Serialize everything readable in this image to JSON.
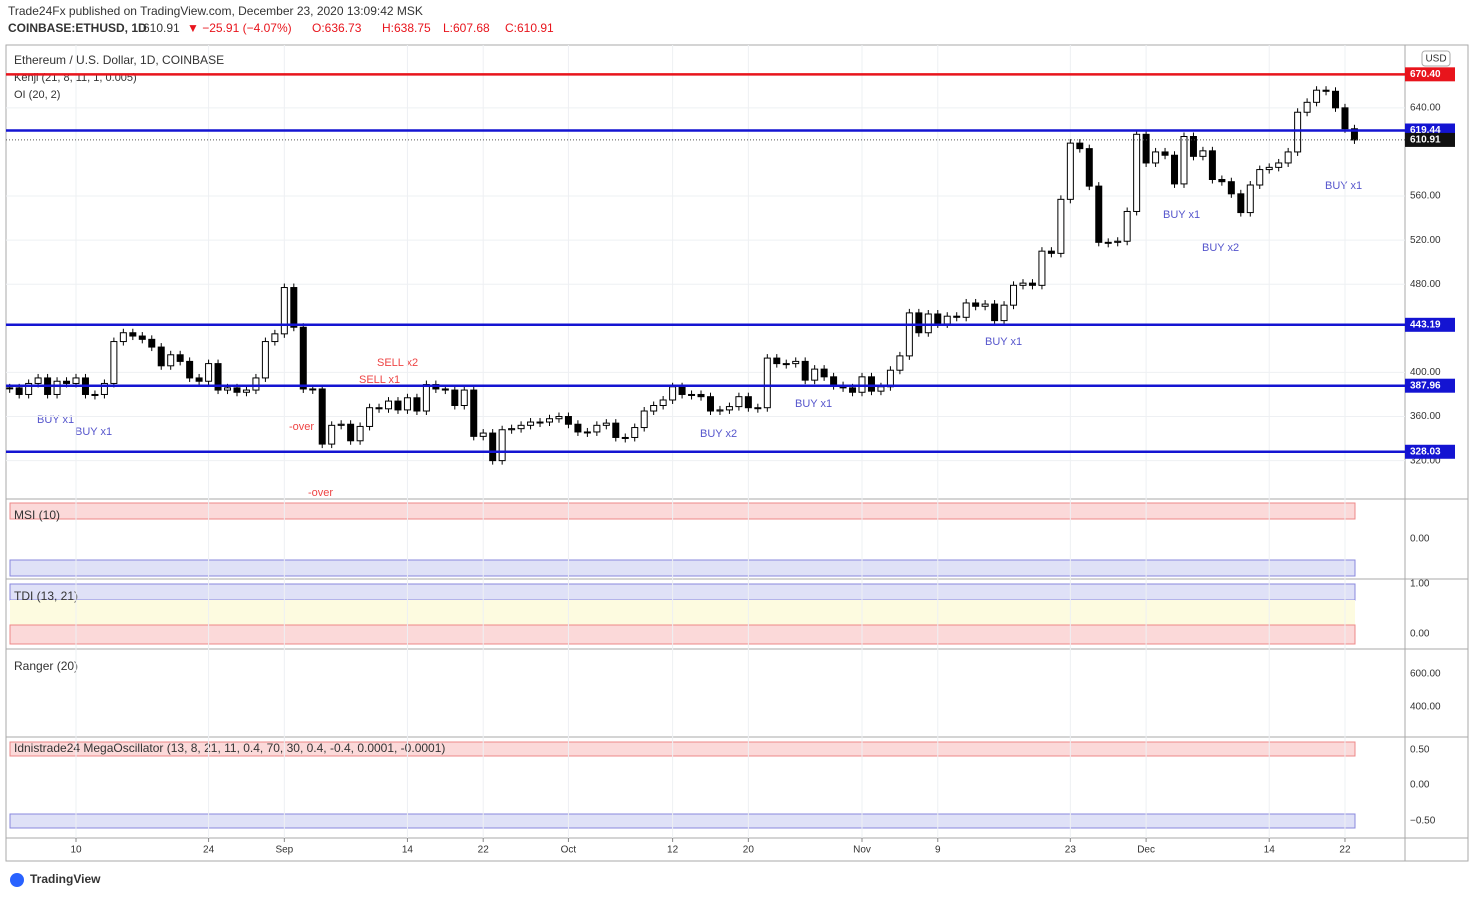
{
  "header": {
    "publisher": "Trade24Fx published on TradingView.com, December 23, 2020 13:09:42 MSK",
    "symbol": "COINBASE:ETHUSD, 1D",
    "last": "610.91",
    "change": "▼ −25.91 (−4.07%)",
    "open": "O:636.73",
    "high": "H:638.75",
    "low": "L:607.68",
    "close": "C:610.91"
  },
  "legend": {
    "instrument": "Ethereum / U.S. Dollar, 1D, COINBASE",
    "indicator1": "Kenji (21, 8, 11, 1, 0.005)",
    "indicator2": "OI (20, 2)",
    "currency": "USD"
  },
  "chart_data": {
    "type": "candles",
    "categories": [
      null,
      null,
      null,
      null,
      null,
      null,
      null,
      "10",
      null,
      null,
      null,
      null,
      null,
      null,
      null,
      null,
      null,
      null,
      null,
      null,
      null,
      "24",
      null,
      null,
      null,
      null,
      null,
      null,
      null,
      "Sep",
      null,
      null,
      null,
      null,
      null,
      null,
      null,
      null,
      null,
      null,
      null,
      null,
      "14",
      null,
      null,
      null,
      null,
      null,
      null,
      null,
      "22",
      null,
      null,
      null,
      null,
      null,
      null,
      null,
      null,
      "Oct",
      null,
      null,
      null,
      null,
      null,
      null,
      null,
      null,
      null,
      null,
      "12",
      null,
      null,
      null,
      null,
      null,
      null,
      null,
      "20",
      null,
      null,
      null,
      null,
      null,
      null,
      null,
      null,
      null,
      null,
      null,
      "Nov",
      null,
      null,
      null,
      null,
      null,
      null,
      null,
      "9",
      null,
      null,
      null,
      null,
      null,
      null,
      null,
      null,
      null,
      null,
      null,
      null,
      null,
      "23",
      null,
      null,
      null,
      null,
      null,
      null,
      null,
      "Dec",
      null,
      null,
      null,
      null,
      null,
      null,
      null,
      null,
      null,
      null,
      null,
      null,
      "14",
      null,
      null,
      null,
      null,
      null,
      null,
      null,
      "22",
      null
    ],
    "values": [
      386,
      380,
      390,
      395,
      380,
      392,
      390,
      395,
      380,
      380,
      390,
      428,
      436,
      433,
      430,
      423,
      406,
      416,
      410,
      395,
      392,
      408,
      384,
      386,
      382,
      384,
      395,
      428,
      435,
      477,
      441,
      385,
      385,
      335,
      352,
      353,
      338,
      351,
      368,
      367,
      374,
      366,
      377,
      365,
      389,
      385,
      384,
      370,
      384,
      342,
      345,
      320,
      348,
      349,
      352,
      355,
      355,
      358,
      360,
      353,
      346,
      346,
      352,
      354,
      341,
      341,
      350,
      365,
      370,
      375,
      387,
      380,
      380,
      378,
      365,
      366,
      369,
      378,
      368,
      368,
      413,
      408,
      408,
      410,
      393,
      403,
      396,
      388,
      386,
      382,
      396,
      383,
      387,
      402,
      415,
      454,
      436,
      453,
      444,
      451,
      450,
      463,
      460,
      462,
      447,
      461,
      479,
      481,
      479,
      510,
      508,
      557,
      608,
      603,
      569,
      518,
      518,
      519,
      546,
      616,
      590,
      600,
      597,
      571,
      614,
      596,
      601,
      575,
      573,
      562,
      545,
      570,
      584,
      586,
      590,
      600,
      636,
      645,
      656,
      655,
      640,
      621,
      610.91
    ],
    "ylim": [
      287,
      697
    ],
    "yticks": [
      {
        "value": 640,
        "label": "640.00"
      },
      {
        "value": 560,
        "label": "560.00"
      },
      {
        "value": 520,
        "label": "520.00"
      },
      {
        "value": 480,
        "label": "480.00"
      },
      {
        "value": 400,
        "label": "400.00"
      },
      {
        "value": 360,
        "label": "360.00"
      },
      {
        "value": 320,
        "label": "320.00"
      }
    ],
    "levels": [
      {
        "value": 670.4,
        "label": "670.40",
        "color": "#e8141c"
      },
      {
        "value": 619.44,
        "label": "619.44",
        "color": "#1414d2"
      },
      {
        "value": 443.19,
        "label": "443.19",
        "color": "#1414d2"
      },
      {
        "value": 387.96,
        "label": "387.96",
        "color": "#1414d2"
      },
      {
        "value": 328.03,
        "label": "328.03",
        "color": "#1414d2"
      }
    ],
    "current": {
      "value": 610.91,
      "label": "610.91"
    },
    "grid": true,
    "up_color": "#ffffff",
    "down_color": "#000000"
  },
  "annotations": [
    "BUY x1",
    "BUY x1",
    "SELL x2",
    "SELL x1",
    "-over",
    "-over",
    "BUY x2",
    "BUY x1",
    "BUY x1",
    "BUY x1",
    "BUY x2",
    "BUY x1"
  ],
  "panels": [
    {
      "title": "MSI (10)",
      "ticks": [
        "0.00"
      ]
    },
    {
      "title": "TDI (13, 21)",
      "ticks": [
        "1.00",
        "0.00"
      ]
    },
    {
      "title": "Ranger (20)",
      "ticks": [
        "600.00",
        "400.00"
      ]
    },
    {
      "title": "Idnistrade24 MegaOscillator (13, 8, 21, 11, 0.4, 70, 30, 0.4, -0.4, 0.0001, -0.0001)",
      "ticks": [
        "0.50",
        "0.00",
        "−0.50"
      ]
    }
  ],
  "footer": {
    "brand": "TradingView"
  }
}
